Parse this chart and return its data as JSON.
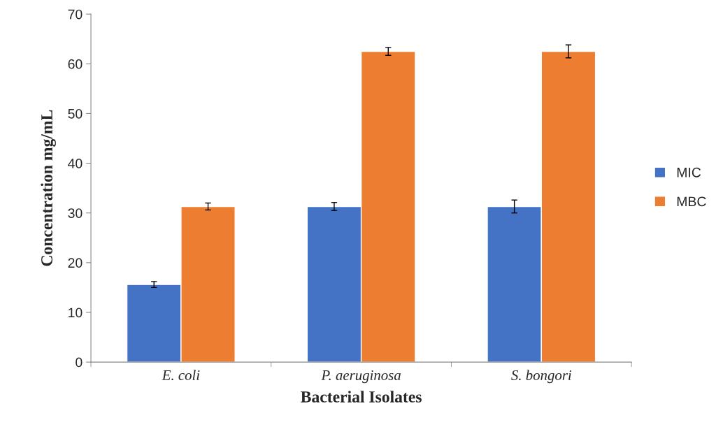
{
  "chart_data": {
    "type": "bar",
    "xlabel": "Bacterial Isolates",
    "ylabel": "Concentration mg/mL",
    "categories": [
      "E. coli",
      "P. aeruginosa",
      "S. bongori"
    ],
    "series": [
      {
        "name": "MIC",
        "color": "#4472c4",
        "values": [
          15.6,
          31.3,
          31.3
        ],
        "errors": [
          0.6,
          0.8,
          1.3
        ]
      },
      {
        "name": "MBC",
        "color": "#ed7d31",
        "values": [
          31.3,
          62.5,
          62.5
        ],
        "errors": [
          0.7,
          0.8,
          1.3
        ]
      }
    ],
    "ylim": [
      0,
      70
    ],
    "yticks": [
      0,
      10,
      20,
      30,
      40,
      50,
      60,
      70
    ],
    "grid": false,
    "legend": "right"
  }
}
